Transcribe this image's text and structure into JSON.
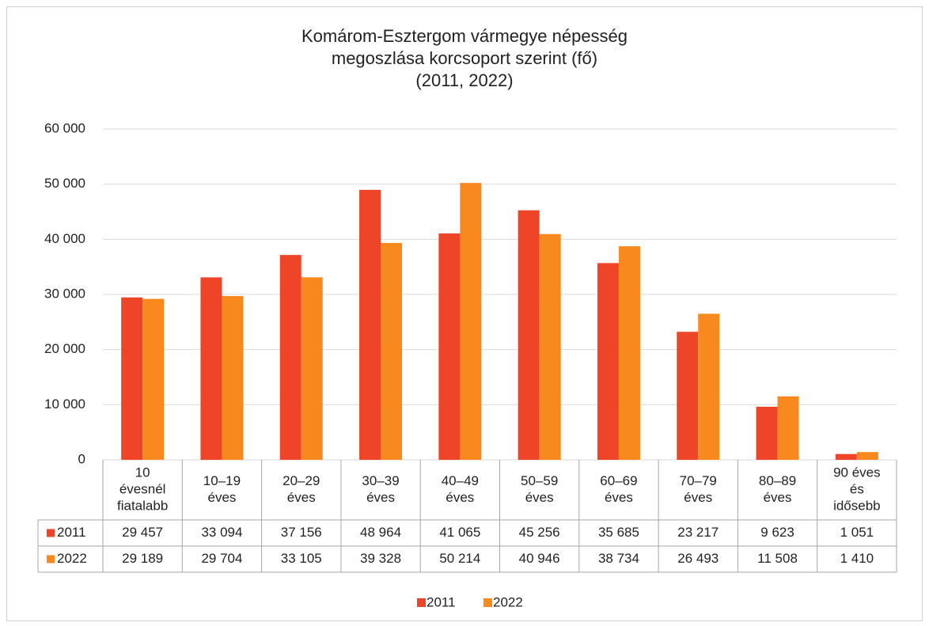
{
  "chart_data": {
    "type": "bar",
    "title": [
      "Komárom-Esztergom vármegye népesség",
      "megoszlása korcsoport szerint (fő)",
      "(2011, 2022)"
    ],
    "categories": [
      [
        "10",
        "évesnél",
        "fiatalabb"
      ],
      [
        "10–19",
        "éves"
      ],
      [
        "20–29",
        "éves"
      ],
      [
        "30–39",
        "éves"
      ],
      [
        "40–49",
        "éves"
      ],
      [
        "50–59",
        "éves"
      ],
      [
        "60–69",
        "éves"
      ],
      [
        "70–79",
        "éves"
      ],
      [
        "80–89",
        "éves"
      ],
      [
        "90 éves",
        "és",
        "idősebb"
      ]
    ],
    "series": [
      {
        "name": "2011",
        "color": "#ee4528",
        "values": [
          29457,
          33094,
          37156,
          48964,
          41065,
          45256,
          35685,
          23217,
          9623,
          1051
        ],
        "value_labels": [
          "29 457",
          "33 094",
          "37 156",
          "48 964",
          "41 065",
          "45 256",
          "35 685",
          "23 217",
          "9 623",
          "1 051"
        ]
      },
      {
        "name": "2022",
        "color": "#f7891f",
        "values": [
          29189,
          29704,
          33105,
          39328,
          50214,
          40946,
          38734,
          26493,
          11508,
          1410
        ],
        "value_labels": [
          "29 189",
          "29 704",
          "33 105",
          "39 328",
          "50 214",
          "40 946",
          "38 734",
          "26 493",
          "11 508",
          "1 410"
        ]
      }
    ],
    "ylim": [
      0,
      60000
    ],
    "yticks": [
      0,
      {
        "value": 10000,
        "label": "10 000"
      },
      {
        "value": 20000,
        "label": "20 000"
      },
      {
        "value": 30000,
        "label": "30 000"
      },
      {
        "value": 40000,
        "label": "40 000"
      },
      {
        "value": 50000,
        "label": "50 000"
      },
      {
        "value": 60000,
        "label": "60 000"
      }
    ],
    "grid": true,
    "legend": "bottom"
  }
}
